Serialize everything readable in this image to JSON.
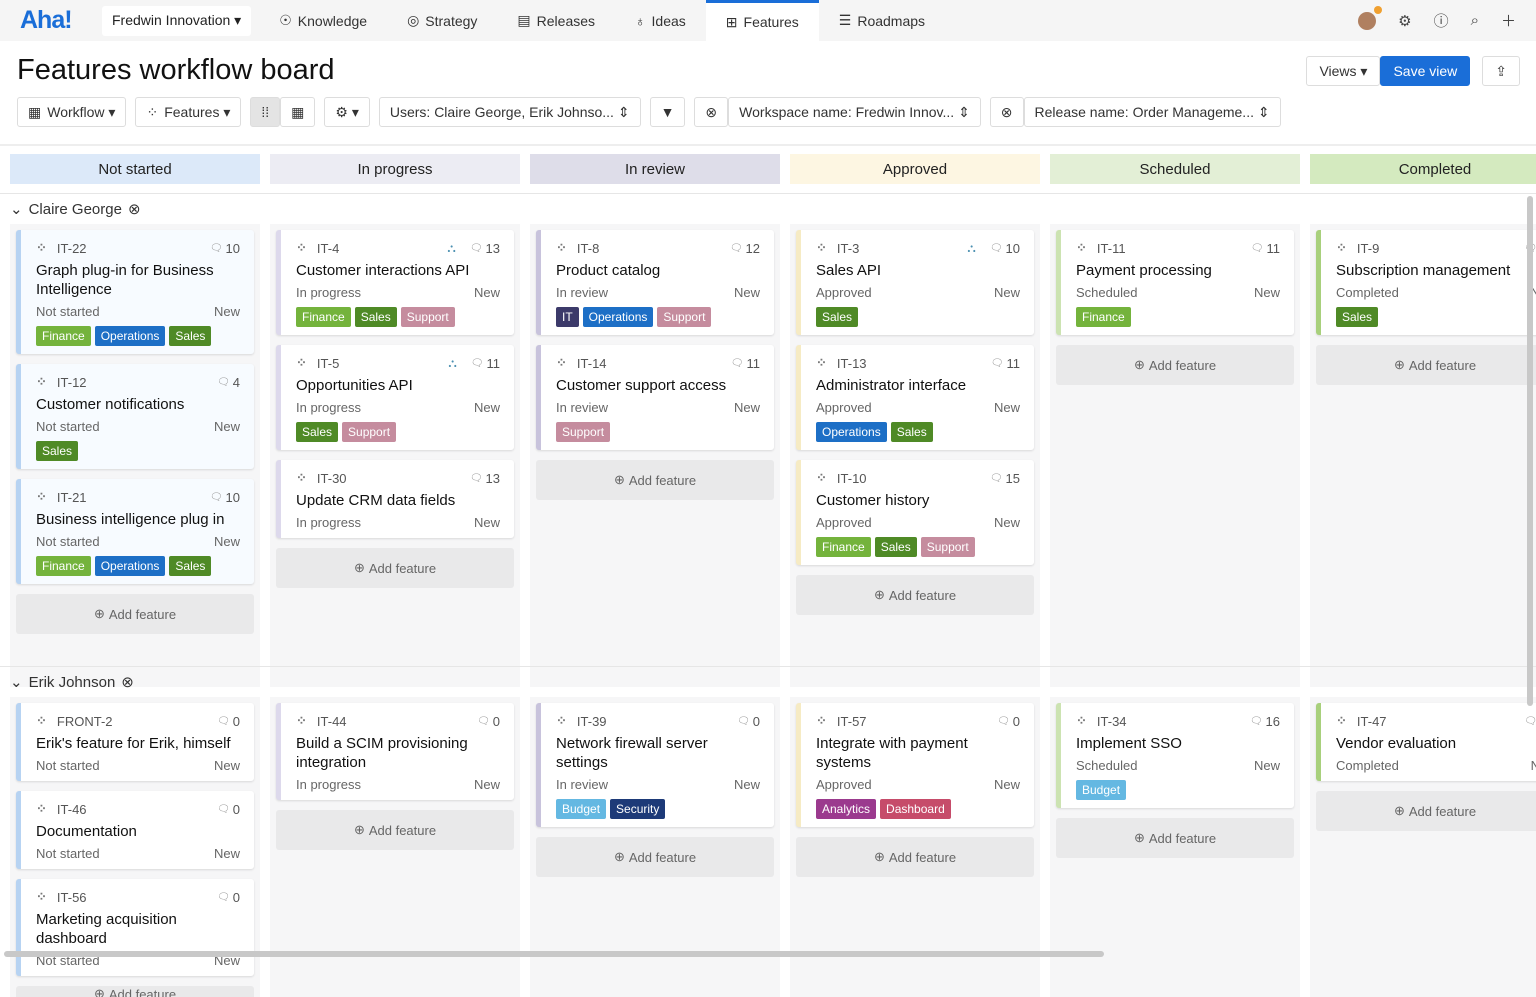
{
  "nav": {
    "logo": "Aha!",
    "workspace": "Fredwin Innovation ▾",
    "items": [
      {
        "label": "Knowledge",
        "icon": "☉"
      },
      {
        "label": "Strategy",
        "icon": "◎"
      },
      {
        "label": "Releases",
        "icon": "▤"
      },
      {
        "label": "Ideas",
        "icon": "♁"
      },
      {
        "label": "Features",
        "icon": "⊞",
        "active": true
      },
      {
        "label": "Roadmaps",
        "icon": "☰"
      }
    ]
  },
  "header": {
    "title": "Features workflow board",
    "views": "Views ▾",
    "save": "Save view",
    "share": "⇪"
  },
  "toolbar": {
    "workflow": "Workflow ▾",
    "features": "Features ▾",
    "settings": "⚙ ▾",
    "users": "Users: Claire George, Erik Johnso...  ⇕",
    "filter": "▼",
    "workspace": "Workspace name: Fredwin Innov...  ⇕",
    "release": "Release name: Order Manageme...  ⇕"
  },
  "colors": {
    "Finance": "#74b33c",
    "Operations": "#1d6fc6",
    "Sales": "#4f8a26",
    "Support": "#c58c9e",
    "IT": "#3c3a6a",
    "Budget": "#64b8e2",
    "Security": "#1d3a78",
    "Analytics": "#9b3a8e",
    "Dashboard": "#c64c6a"
  },
  "columns": [
    {
      "label": "Not started",
      "bg": "#dce9f9",
      "border": "#b7d3f2"
    },
    {
      "label": "In progress",
      "bg": "#ececf3",
      "border": "#ddd9ec"
    },
    {
      "label": "In review",
      "bg": "#dedde9",
      "border": "#c8c3dc"
    },
    {
      "label": "Approved",
      "bg": "#fdf6e2",
      "border": "#f6ebc4"
    },
    {
      "label": "Scheduled",
      "bg": "#e3efd6",
      "border": "#cce3b2"
    },
    {
      "label": "Completed",
      "bg": "#d4eabf",
      "border": "#a8d07c"
    }
  ],
  "add_label": "Add feature",
  "lanes": [
    {
      "name": "Claire George",
      "cols": [
        [
          {
            "id": "IT-22",
            "count": "10",
            "title": "Graph plug-in for Business Intelligence",
            "status": "Not started",
            "state": "New",
            "tags": [
              "Finance",
              "Operations",
              "Sales"
            ]
          },
          {
            "id": "IT-12",
            "count": "4",
            "title": "Customer notifications",
            "status": "Not started",
            "state": "New",
            "tags": [
              "Sales"
            ]
          },
          {
            "id": "IT-21",
            "count": "10",
            "title": "Business intelligence plug in",
            "status": "Not started",
            "state": "New",
            "tags": [
              "Finance",
              "Operations",
              "Sales"
            ]
          }
        ],
        [
          {
            "id": "IT-4",
            "count": "13",
            "hier": true,
            "title": "Customer interactions API",
            "status": "In progress",
            "state": "New",
            "tags": [
              "Finance",
              "Sales",
              "Support"
            ]
          },
          {
            "id": "IT-5",
            "count": "11",
            "hier": true,
            "title": "Opportunities API",
            "status": "In progress",
            "state": "New",
            "tags": [
              "Sales",
              "Support"
            ]
          },
          {
            "id": "IT-30",
            "count": "13",
            "title": "Update CRM data fields",
            "status": "In progress",
            "state": "New",
            "tags": []
          }
        ],
        [
          {
            "id": "IT-8",
            "count": "12",
            "title": "Product catalog",
            "status": "In review",
            "state": "New",
            "tags": [
              "IT",
              "Operations",
              "Support"
            ]
          },
          {
            "id": "IT-14",
            "count": "11",
            "title": "Customer support access",
            "status": "In review",
            "state": "New",
            "tags": [
              "Support"
            ]
          }
        ],
        [
          {
            "id": "IT-3",
            "count": "10",
            "hier": true,
            "title": "Sales API",
            "status": "Approved",
            "state": "New",
            "tags": [
              "Sales"
            ]
          },
          {
            "id": "IT-13",
            "count": "11",
            "title": "Administrator interface",
            "status": "Approved",
            "state": "New",
            "tags": [
              "Operations",
              "Sales"
            ]
          },
          {
            "id": "IT-10",
            "count": "15",
            "title": "Customer history",
            "status": "Approved",
            "state": "New",
            "tags": [
              "Finance",
              "Sales",
              "Support"
            ]
          }
        ],
        [
          {
            "id": "IT-11",
            "count": "11",
            "title": "Payment processing",
            "status": "Scheduled",
            "state": "New",
            "tags": [
              "Finance"
            ]
          }
        ],
        [
          {
            "id": "IT-9",
            "count": "",
            "title": "Subscription management",
            "status": "Completed",
            "state": "N",
            "tags": [
              "Sales"
            ]
          }
        ]
      ]
    },
    {
      "name": "Erik Johnson",
      "cols": [
        [
          {
            "id": "FRONT-2",
            "count": "0",
            "title": "Erik's feature for Erik, himself",
            "status": "Not started",
            "state": "New",
            "tags": []
          },
          {
            "id": "IT-46",
            "count": "0",
            "title": "Documentation",
            "status": "Not started",
            "state": "New",
            "tags": []
          },
          {
            "id": "IT-56",
            "count": "0",
            "title": "Marketing acquisition dashboard",
            "status": "Not started",
            "state": "New",
            "tags": []
          }
        ],
        [
          {
            "id": "IT-44",
            "count": "0",
            "title": "Build a SCIM provisioning integration",
            "status": "In progress",
            "state": "New",
            "tags": []
          }
        ],
        [
          {
            "id": "IT-39",
            "count": "0",
            "title": "Network firewall server settings",
            "status": "In review",
            "state": "New",
            "tags": [
              "Budget",
              "Security"
            ]
          }
        ],
        [
          {
            "id": "IT-57",
            "count": "0",
            "title": "Integrate with payment systems",
            "status": "Approved",
            "state": "New",
            "tags": [
              "Analytics",
              "Dashboard"
            ]
          }
        ],
        [
          {
            "id": "IT-34",
            "count": "16",
            "title": "Implement SSO",
            "status": "Scheduled",
            "state": "New",
            "tags": [
              "Budget"
            ]
          }
        ],
        [
          {
            "id": "IT-47",
            "count": "",
            "title": "Vendor evaluation",
            "status": "Completed",
            "state": "N",
            "tags": []
          }
        ]
      ]
    }
  ]
}
